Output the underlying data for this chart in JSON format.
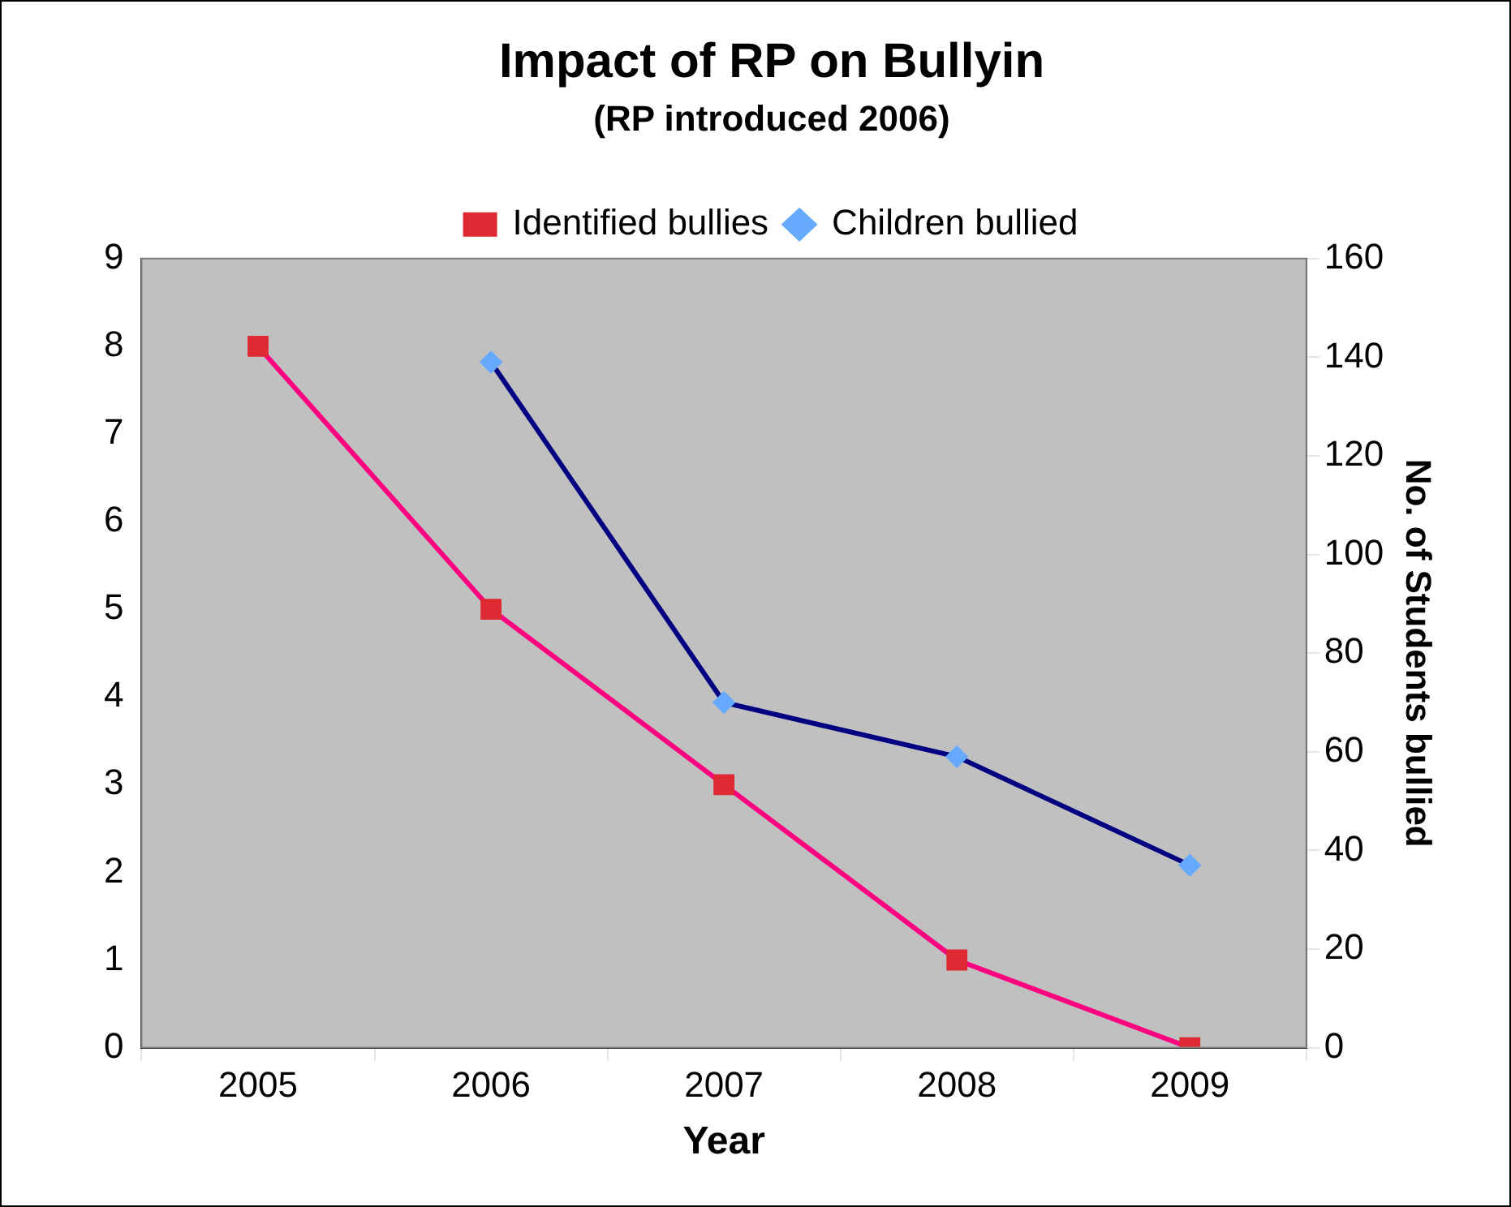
{
  "chart_data": {
    "type": "line",
    "title": "Impact of RP on Bullyin",
    "subtitle": "(RP introduced 2006)",
    "xlabel": "Year",
    "y2label": "No. of Students bullied",
    "categories": [
      "2005",
      "2006",
      "2007",
      "2008",
      "2009"
    ],
    "series": [
      {
        "name": "Identified bullies",
        "color": "#ff0080",
        "marker": "square",
        "values": [
          8,
          5,
          3,
          1,
          0
        ]
      },
      {
        "name": "Children bullied",
        "color": "#000080",
        "marker": "diamond",
        "axis": "y2",
        "values": [
          null,
          139,
          70,
          59,
          37
        ]
      }
    ],
    "ylim": [
      0,
      9
    ],
    "yticks": [
      0,
      1,
      2,
      3,
      4,
      5,
      6,
      7,
      8,
      9
    ],
    "y2lim": [
      0,
      160
    ],
    "y2ticks": [
      0,
      20,
      40,
      60,
      80,
      100,
      120,
      140,
      160
    ],
    "legend": "top",
    "grid": false
  }
}
